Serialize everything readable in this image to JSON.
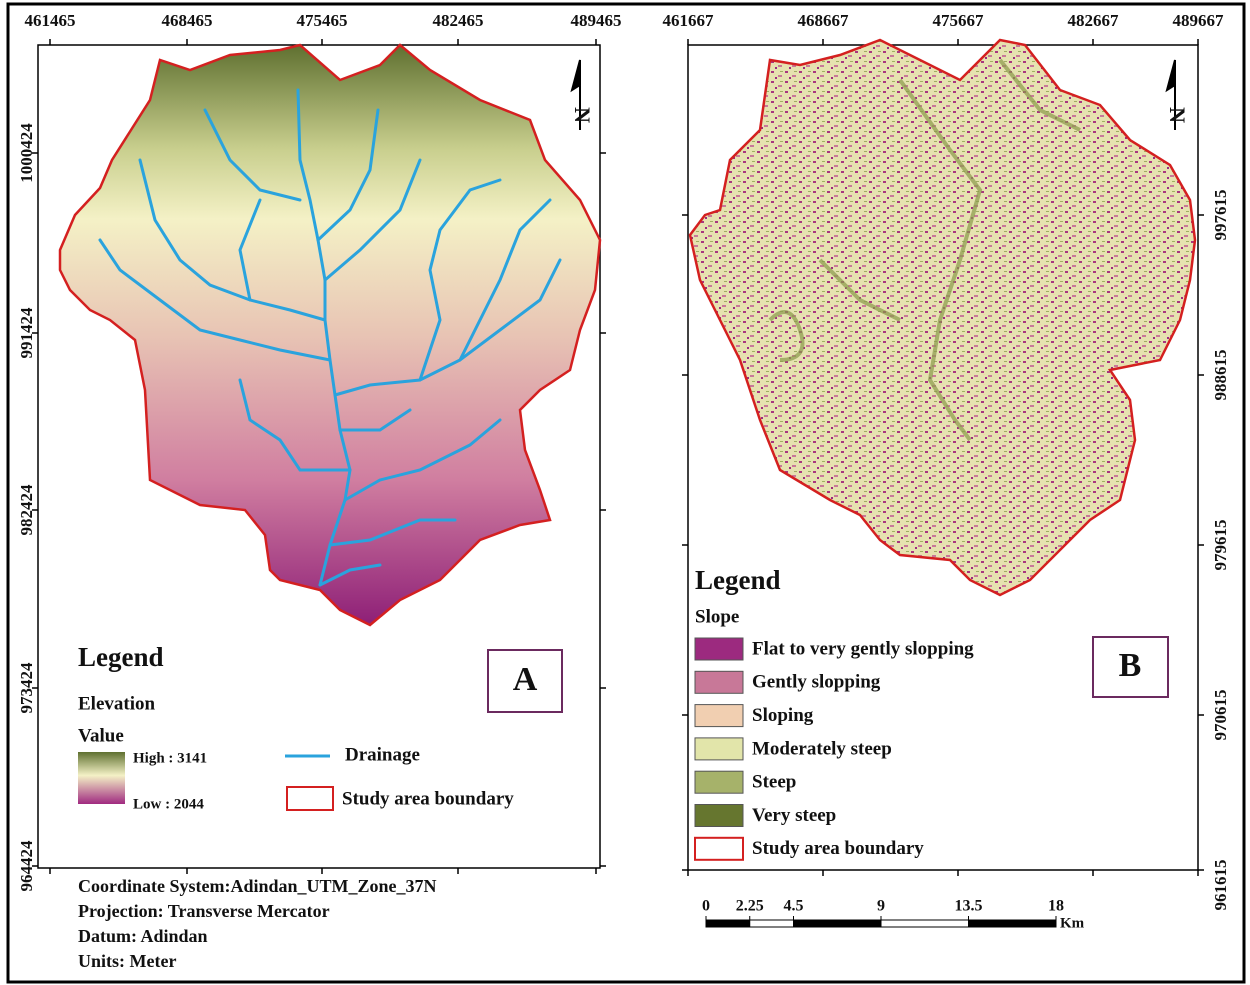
{
  "panel_a": {
    "label": "A",
    "north": "N",
    "x_coords": [
      "461465",
      "468465",
      "475465",
      "482465",
      "489465"
    ],
    "y_coords": [
      "1000424",
      "991424",
      "982424",
      "973424",
      "964424"
    ],
    "legend": {
      "title": "Legend",
      "subtitle": "Elevation",
      "value_label": "Value",
      "high": "High : 3141",
      "low": "Low : 2044",
      "drainage": "Drainage",
      "boundary": "Study area boundary"
    },
    "footer": [
      "Coordinate System:Adindan_UTM_Zone_37N",
      "Projection: Transverse Mercator",
      "Datum: Adindan",
      "Units: Meter"
    ]
  },
  "panel_b": {
    "label": "B",
    "north": "N",
    "x_coords": [
      "461667",
      "468667",
      "475667",
      "482667",
      "489667"
    ],
    "y_coords": [
      "997615",
      "988615",
      "979615",
      "970615",
      "961615"
    ],
    "legend": {
      "title": "Legend",
      "subtitle": "Slope",
      "items": [
        {
          "name": "Flat to very gently slopping",
          "color": "#9c2a7f"
        },
        {
          "name": "Gently slopping",
          "color": "#c87898"
        },
        {
          "name": "Sloping",
          "color": "#f1cfb1"
        },
        {
          "name": " Moderately steep",
          "color": "#e2e5aa"
        },
        {
          "name": "Steep",
          "color": "#a6b26a"
        },
        {
          "name": "Very steep",
          "color": "#66762f"
        }
      ],
      "boundary": "Study area boundary"
    },
    "scale": {
      "ticks": [
        0,
        2.25,
        4.5,
        9,
        13.5,
        18
      ],
      "unit": "Km"
    }
  }
}
